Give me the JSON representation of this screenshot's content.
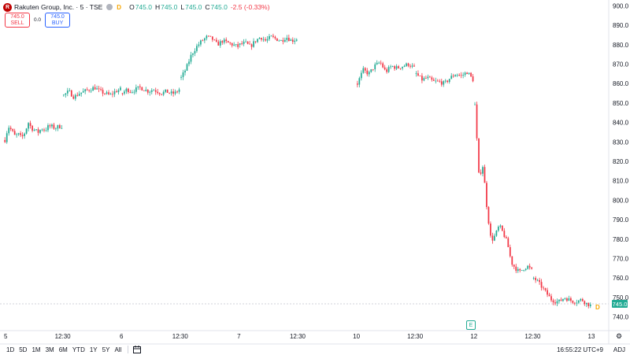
{
  "header": {
    "logo_letter": "R",
    "symbol": "Rakuten Group, Inc. · 5 · TSE",
    "delay_badge": "D",
    "ohlc": [
      {
        "label": "O",
        "value": "745.0"
      },
      {
        "label": "H",
        "value": "745.0"
      },
      {
        "label": "L",
        "value": "745.0"
      },
      {
        "label": "C",
        "value": "745.0"
      }
    ],
    "change": "-2.5 (-0.33%)"
  },
  "trade": {
    "sell_price": "745.0",
    "sell_label": "SELL",
    "spread": "0.0",
    "buy_price": "745.0",
    "buy_label": "BUY"
  },
  "last_price_tag": "745.0",
  "markers": {
    "earnings": "E",
    "dividend": "D"
  },
  "bottom": {
    "ranges": [
      "1D",
      "5D",
      "1M",
      "3M",
      "6M",
      "YTD",
      "1Y",
      "5Y",
      "All"
    ],
    "calendar_icon": "calendar-icon",
    "clock": "16:55:22 UTC+9",
    "adj": "ADJ"
  },
  "colors": {
    "up": "#22ab94",
    "down": "#f23645",
    "accent": "#2962ff"
  },
  "chart_data": {
    "type": "candlestick",
    "yticks": [
      740,
      750,
      760,
      770,
      780,
      790,
      800,
      810,
      820,
      830,
      840,
      850,
      860,
      870,
      880,
      890,
      900
    ],
    "ylim": [
      735,
      903
    ],
    "last_price": 745.0,
    "xticks": [
      "5",
      "12:30",
      "6",
      "12:30",
      "7",
      "12:30",
      "10",
      "12:30",
      "12",
      "12:30",
      "13"
    ],
    "sessions": [
      {
        "label": "5",
        "segments": [
          {
            "start": 0,
            "path": [
              831,
              838,
              836,
              833,
              834,
              832,
              835,
              840,
              837,
              836,
              835,
              837,
              836,
              838,
              838,
              837,
              838,
              838
            ]
          },
          {
            "start": 0.5,
            "path": [
              854,
              856,
              853,
              855,
              856,
              857,
              858,
              856,
              855,
              854,
              856,
              857
            ]
          }
        ]
      },
      {
        "label": "6",
        "segments": [
          {
            "start": 0,
            "path": [
              855,
              857,
              856,
              857,
              858,
              857,
              856,
              857,
              856,
              855,
              856,
              855,
              855,
              857
            ]
          },
          {
            "start": 0.5,
            "path": [
              863,
              868,
              875,
              879,
              882,
              884,
              883,
              880,
              882,
              881,
              880,
              879
            ]
          }
        ]
      },
      {
        "label": "7",
        "segments": [
          {
            "start": 0,
            "path": [
              880,
              881,
              879,
              882,
              884,
              882,
              884,
              883,
              882,
              884,
              882,
              883
            ]
          }
        ]
      },
      {
        "label": "10",
        "segments": [
          {
            "start": 0,
            "path": [
              860,
              867,
              865,
              869,
              871,
              866,
              869,
              868,
              869,
              870,
              868
            ]
          },
          {
            "start": 0.5,
            "path": [
              865,
              862,
              863,
              861,
              861,
              860,
              863,
              865,
              864,
              866,
              862
            ]
          }
        ]
      },
      {
        "label": "12",
        "segments": [
          {
            "start": 0,
            "path": [
              849,
              812,
              818,
              795,
              779,
              782,
              787,
              783,
              778,
              768,
              765,
              763,
              765,
              766,
              764
            ]
          },
          {
            "start": 0.5,
            "path": [
              760,
              758,
              755,
              752,
              749,
              748,
              748,
              750,
              749,
              748,
              748,
              749,
              747,
              746
            ]
          }
        ]
      }
    ]
  }
}
